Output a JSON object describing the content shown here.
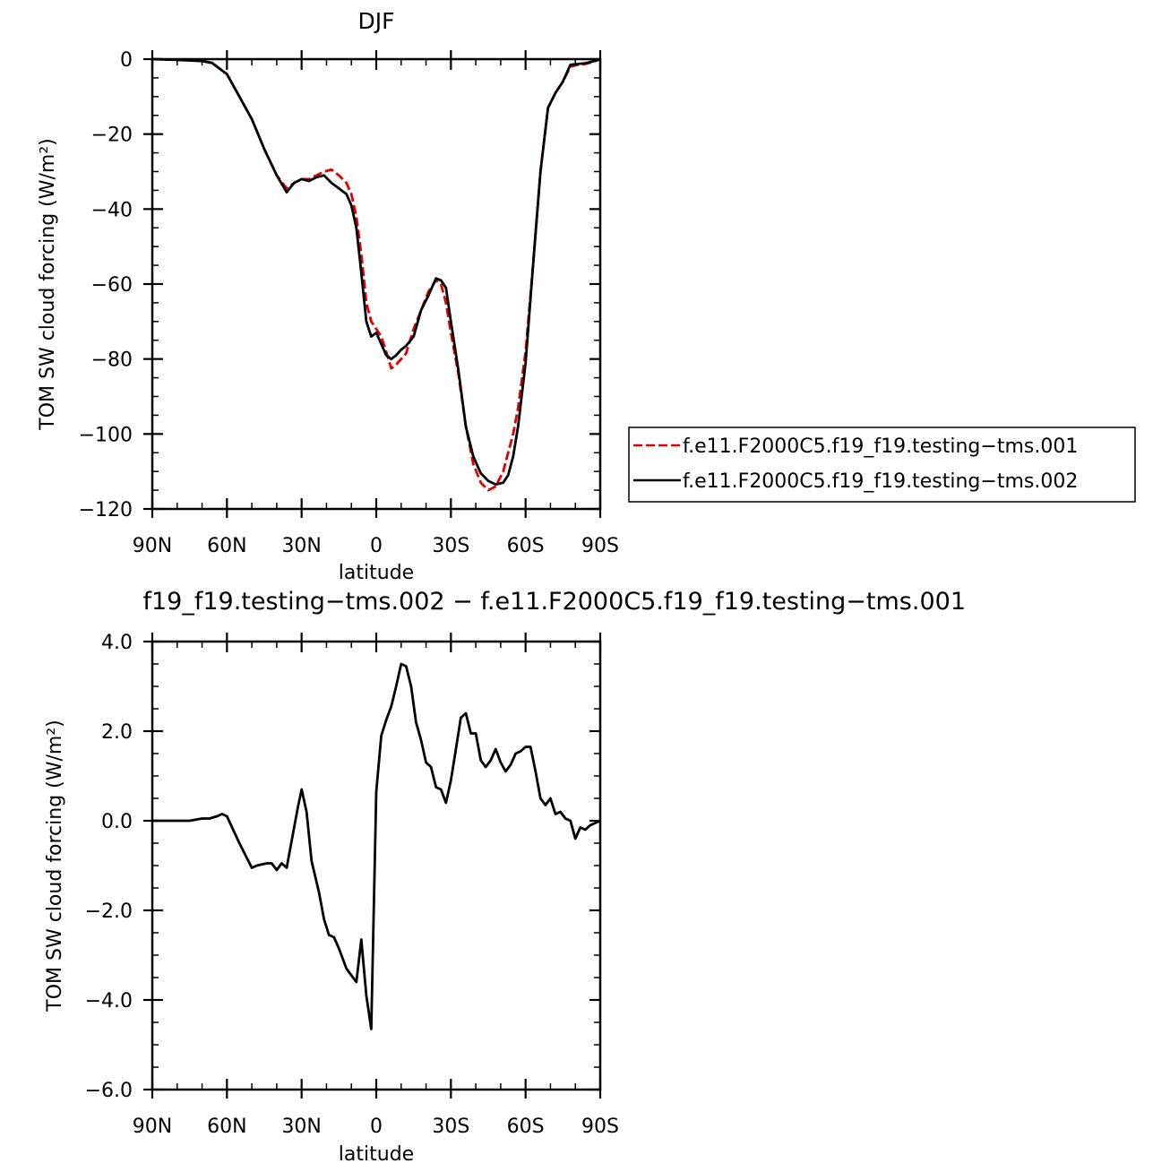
{
  "chart_data": [
    {
      "type": "line",
      "title": "DJF",
      "xlabel": "latitude",
      "ylabel": "TOM SW cloud forcing (W/m²)",
      "xlim": [
        90,
        -90
      ],
      "ylim": [
        -120,
        0
      ],
      "x_ticks": [
        {
          "value": 90,
          "label": "90N"
        },
        {
          "value": 60,
          "label": "60N"
        },
        {
          "value": 30,
          "label": "30N"
        },
        {
          "value": 0,
          "label": "0"
        },
        {
          "value": -30,
          "label": "30S"
        },
        {
          "value": -60,
          "label": "60S"
        },
        {
          "value": -90,
          "label": "90S"
        }
      ],
      "y_ticks": [
        {
          "value": 0,
          "label": "0"
        },
        {
          "value": -20,
          "label": "−20"
        },
        {
          "value": -40,
          "label": "−40"
        },
        {
          "value": -60,
          "label": "−60"
        },
        {
          "value": -80,
          "label": "−80"
        },
        {
          "value": -100,
          "label": "−100"
        },
        {
          "value": -120,
          "label": "−120"
        }
      ],
      "legend_position": "right",
      "series": [
        {
          "name": "f.e11.F2000C5.f19_f19.testing−tms.001",
          "color": "#e00000",
          "dash": "dashed",
          "x": [
            90,
            80,
            70,
            66,
            60,
            55,
            50,
            45,
            40,
            36,
            33,
            30,
            27,
            24,
            21,
            18,
            15,
            12,
            10,
            8,
            6,
            4,
            2,
            0,
            -2,
            -4,
            -6,
            -8,
            -10,
            -12,
            -15,
            -18,
            -21,
            -24,
            -26,
            -28,
            -30,
            -33,
            -36,
            -39,
            -42,
            -45,
            -48,
            -51,
            -53,
            -55,
            -57,
            -60,
            -63,
            -66,
            -69,
            -72,
            -75,
            -78,
            -81,
            -84,
            -87,
            -90
          ],
          "y": [
            0,
            -0.2,
            -0.5,
            -1,
            -4,
            -10,
            -16,
            -24,
            -31,
            -34.5,
            -33,
            -32,
            -32,
            -31,
            -30,
            -29.5,
            -31,
            -33,
            -36,
            -42,
            -52,
            -65,
            -70,
            -72,
            -74,
            -78,
            -82.5,
            -81.5,
            -80,
            -78.5,
            -72,
            -67,
            -62,
            -59,
            -60,
            -65,
            -73,
            -84,
            -98,
            -108,
            -113,
            -115,
            -114,
            -110,
            -105,
            -100,
            -93,
            -78,
            -55,
            -30,
            -13,
            -9,
            -6,
            -2,
            -1.5,
            -1.3,
            -0.8,
            0
          ]
        },
        {
          "name": "f.e11.F2000C5.f19_f19.testing−tms.002",
          "color": "#000000",
          "dash": "solid",
          "x": [
            90,
            80,
            70,
            66,
            60,
            55,
            50,
            45,
            40,
            36,
            33,
            30,
            27,
            24,
            21,
            18,
            15,
            12,
            10,
            8,
            6,
            4,
            2,
            0,
            -2,
            -4,
            -6,
            -8,
            -10,
            -12,
            -15,
            -18,
            -21,
            -24,
            -26,
            -28,
            -30,
            -33,
            -36,
            -39,
            -42,
            -45,
            -48,
            -51,
            -53,
            -55,
            -57,
            -60,
            -63,
            -66,
            -69,
            -72,
            -75,
            -78,
            -81,
            -84,
            -87,
            -90
          ],
          "y": [
            0,
            -0.2,
            -0.5,
            -1,
            -4,
            -10,
            -16,
            -24,
            -31,
            -35.5,
            -33,
            -32,
            -32.5,
            -31.5,
            -31,
            -33,
            -34.5,
            -36,
            -39,
            -45,
            -57,
            -70,
            -74,
            -73,
            -76,
            -79,
            -80,
            -79,
            -77.5,
            -76.5,
            -74,
            -67,
            -63,
            -58.5,
            -59,
            -61,
            -70,
            -83,
            -98,
            -106,
            -110.5,
            -112.5,
            -113.5,
            -113,
            -111,
            -106,
            -98,
            -81,
            -55,
            -30,
            -13,
            -9,
            -6,
            -1.5,
            -1.3,
            -1.1,
            -0.6,
            0
          ]
        }
      ]
    },
    {
      "type": "line",
      "title": "f19_f19.testing−tms.002 − f.e11.F2000C5.f19_f19.testing−tms.001",
      "xlabel": "latitude",
      "ylabel": "TOM SW cloud forcing (W/m²)",
      "xlim": [
        90,
        -90
      ],
      "ylim": [
        -6,
        4
      ],
      "x_ticks": [
        {
          "value": 90,
          "label": "90N"
        },
        {
          "value": 60,
          "label": "60N"
        },
        {
          "value": 30,
          "label": "30N"
        },
        {
          "value": 0,
          "label": "0"
        },
        {
          "value": -30,
          "label": "30S"
        },
        {
          "value": -60,
          "label": "60S"
        },
        {
          "value": -90,
          "label": "90S"
        }
      ],
      "y_ticks": [
        {
          "value": 4,
          "label": "4.0"
        },
        {
          "value": 2,
          "label": "2.0"
        },
        {
          "value": 0,
          "label": "0.0"
        },
        {
          "value": -2,
          "label": "−2.0"
        },
        {
          "value": -4,
          "label": "−4.0"
        },
        {
          "value": -6,
          "label": "−6.0"
        }
      ],
      "series": [
        {
          "color": "#000000",
          "dash": "solid",
          "x": [
            90,
            75,
            70,
            67,
            64,
            62,
            60,
            55,
            50,
            48,
            44,
            42,
            40,
            38,
            36,
            31.5,
            30,
            28,
            26,
            23,
            21,
            19,
            17,
            15,
            12,
            10,
            8,
            6,
            4,
            2,
            0,
            -2,
            -4,
            -6,
            -8,
            -10,
            -12,
            -14,
            -16,
            -18,
            -20,
            -22,
            -24,
            -26,
            -28,
            -30,
            -32,
            -34,
            -36,
            -38,
            -40,
            -42,
            -44,
            -46,
            -48,
            -50,
            -52,
            -54,
            -56,
            -58,
            -60,
            -62,
            -64,
            -66,
            -68,
            -70,
            -72,
            -74,
            -76,
            -78,
            -80,
            -82,
            -84,
            -86,
            -88,
            -90
          ],
          "y": [
            0,
            0,
            0.05,
            0.05,
            0.1,
            0.15,
            0.1,
            -0.5,
            -1.05,
            -1.0,
            -0.95,
            -0.95,
            -1.1,
            -0.95,
            -1.05,
            0.3,
            0.7,
            0.2,
            -0.9,
            -1.6,
            -2.2,
            -2.55,
            -2.6,
            -2.85,
            -3.3,
            -3.45,
            -3.6,
            -2.65,
            -3.9,
            -4.65,
            0.65,
            1.9,
            2.25,
            2.55,
            3.0,
            3.5,
            3.45,
            3.0,
            2.2,
            1.8,
            1.3,
            1.2,
            0.75,
            0.7,
            0.4,
            0.9,
            1.6,
            2.3,
            2.4,
            1.95,
            1.95,
            1.35,
            1.2,
            1.35,
            1.6,
            1.3,
            1.1,
            1.25,
            1.5,
            1.55,
            1.65,
            1.65,
            1.1,
            0.5,
            0.35,
            0.5,
            0.15,
            0.2,
            0.05,
            0.0,
            -0.4,
            -0.15,
            -0.2,
            -0.1,
            -0.05,
            0.0
          ]
        }
      ]
    }
  ]
}
